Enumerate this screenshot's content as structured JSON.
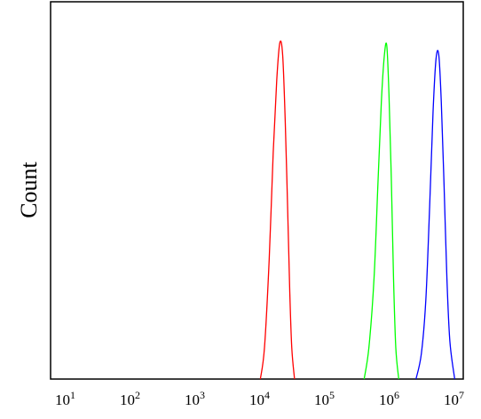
{
  "chart_data": {
    "type": "line",
    "title": "",
    "xlabel": "",
    "ylabel": "Count",
    "x_scale": "log",
    "xlim": [
      10,
      10000000
    ],
    "ylim": [
      0,
      1.2
    ],
    "grid": false,
    "legend": "none",
    "x_ticks": [
      {
        "value": 10,
        "base": "10",
        "exp": "1"
      },
      {
        "value": 100,
        "base": "10",
        "exp": "2"
      },
      {
        "value": 1000,
        "base": "10",
        "exp": "3"
      },
      {
        "value": 10000,
        "base": "10",
        "exp": "4"
      },
      {
        "value": 100000,
        "base": "10",
        "exp": "5"
      },
      {
        "value": 1000000,
        "base": "10",
        "exp": "6"
      },
      {
        "value": 10000000,
        "base": "10",
        "exp": "7"
      }
    ],
    "series": [
      {
        "color": "#ff0000",
        "x": [
          9500,
          11000,
          13000,
          15000,
          17000,
          19000,
          21000,
          23000,
          25000,
          27000,
          29000,
          32000
        ],
        "y": [
          0.0,
          0.1,
          0.38,
          0.72,
          0.95,
          1.07,
          1.03,
          0.82,
          0.55,
          0.28,
          0.1,
          0.0
        ]
      },
      {
        "color": "#00ff00",
        "x": [
          380000,
          450000,
          540000,
          620000,
          700000,
          780000,
          850000,
          920000,
          1000000,
          1080000,
          1170000,
          1300000
        ],
        "y": [
          0.0,
          0.1,
          0.32,
          0.62,
          0.88,
          1.03,
          1.06,
          0.9,
          0.63,
          0.32,
          0.1,
          0.0
        ]
      },
      {
        "color": "#0000ff",
        "x": [
          2400000,
          2900000,
          3400000,
          3900000,
          4400000,
          4900000,
          5400000,
          5900000,
          6500000,
          7200000,
          8000000,
          9500000
        ],
        "y": [
          0.0,
          0.08,
          0.25,
          0.55,
          0.85,
          1.02,
          1.03,
          0.88,
          0.62,
          0.32,
          0.12,
          0.0
        ]
      }
    ]
  }
}
